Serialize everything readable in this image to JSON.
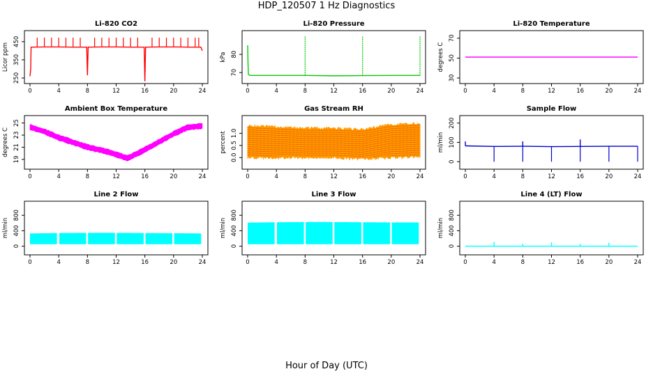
{
  "figure": {
    "title": "HDP_120507  1 Hz Diagnostics",
    "x_common_label": "Hour of Day (UTC)"
  },
  "chart_data": [
    {
      "id": "li820-co2",
      "type": "line",
      "title": "Li-820 CO2",
      "ylabel": "Licor ppm",
      "xlim": [
        0,
        24
      ],
      "ylim": [
        250,
        480
      ],
      "xticks": [
        0,
        4,
        8,
        12,
        16,
        20,
        24
      ],
      "yticks": [
        250,
        350,
        450
      ],
      "xtick_labels": [
        "0",
        "4",
        "8",
        "12",
        "16",
        "20",
        "24"
      ],
      "ytick_labels": [
        "250",
        "350",
        "450"
      ],
      "color": "#ff0000",
      "series": [
        {
          "x": [
            0,
            0.1,
            0.15,
            0.3,
            2,
            4,
            6,
            7.9,
            8,
            8.1,
            10,
            12,
            14,
            15.9,
            16,
            16.1,
            18,
            20,
            22,
            23.8,
            24
          ],
          "y": [
            260,
            300,
            420,
            420,
            421,
            421,
            420,
            420,
            265,
            420,
            421,
            421,
            420,
            420,
            232,
            420,
            421,
            421,
            420,
            420,
            400
          ]
        }
      ],
      "spikes_x": [
        1,
        2,
        3,
        4,
        5,
        6,
        7,
        9,
        10,
        11,
        12,
        13,
        14,
        15,
        17,
        18,
        19,
        20,
        21,
        22,
        23,
        23.5
      ],
      "spike_y": 472
    },
    {
      "id": "li820-pressure",
      "type": "line",
      "title": "Li-820 Pressure",
      "ylabel": "kPa",
      "xlim": [
        0,
        24
      ],
      "ylim": [
        67,
        90
      ],
      "xticks": [
        0,
        4,
        8,
        12,
        16,
        20,
        24
      ],
      "yticks": [
        70,
        80
      ],
      "xtick_labels": [
        "0",
        "4",
        "8",
        "12",
        "16",
        "20",
        "24"
      ],
      "ytick_labels": [
        "70",
        "80"
      ],
      "color": "#00cc00",
      "series": [
        {
          "x": [
            0,
            0.05,
            0.1,
            0.3,
            4,
            8,
            12,
            16,
            20,
            23.9,
            24
          ],
          "y": [
            85,
            75,
            69,
            68.4,
            68.4,
            68.4,
            68.2,
            68.3,
            68.4,
            68.4,
            68.4
          ]
        }
      ],
      "spikes_x": [
        8,
        16,
        24
      ],
      "spike_y": 90
    },
    {
      "id": "li820-temperature",
      "type": "line",
      "title": "Li-820 Temperature",
      "ylabel": "degrees C",
      "xlim": [
        0,
        24
      ],
      "ylim": [
        30,
        72
      ],
      "xticks": [
        0,
        4,
        8,
        12,
        16,
        20,
        24
      ],
      "yticks": [
        30,
        50,
        70
      ],
      "xtick_labels": [
        "0",
        "4",
        "8",
        "12",
        "16",
        "20",
        "24"
      ],
      "ytick_labels": [
        "30",
        "50",
        "70"
      ],
      "color": "#ff00ff",
      "series": [
        {
          "x": [
            0,
            24
          ],
          "y": [
            51,
            51
          ]
        }
      ]
    },
    {
      "id": "ambient-box-temperature",
      "type": "line",
      "title": "Ambient Box Temperature",
      "ylabel": "degrees C",
      "xlim": [
        0,
        24
      ],
      "ylim": [
        18.3,
        25.3
      ],
      "xticks": [
        0,
        4,
        8,
        12,
        16,
        20,
        24
      ],
      "yticks": [
        19,
        21,
        23,
        25
      ],
      "xtick_labels": [
        "0",
        "4",
        "8",
        "12",
        "16",
        "20",
        "24"
      ],
      "ytick_labels": [
        "19",
        "21",
        "23",
        "25"
      ],
      "color": "#ff00ff",
      "band_width": 0.9,
      "series": [
        {
          "x": [
            0,
            2,
            4,
            6,
            8,
            10,
            12,
            13.5,
            14,
            16,
            18,
            20,
            22,
            24
          ],
          "y": [
            24.3,
            23.6,
            22.6,
            21.8,
            21.0,
            20.5,
            19.8,
            19.2,
            19.4,
            20.6,
            21.9,
            23.2,
            24.3,
            24.5
          ]
        }
      ]
    },
    {
      "id": "gas-stream-rh",
      "type": "area",
      "title": "Gas Stream RH",
      "ylabel": "percent",
      "xlim": [
        0,
        24
      ],
      "ylim": [
        -0.25,
        1.5
      ],
      "xticks": [
        0,
        4,
        8,
        12,
        16,
        20,
        24
      ],
      "yticks": [
        0.0,
        0.5,
        1.0
      ],
      "xtick_labels": [
        "0",
        "4",
        "8",
        "12",
        "16",
        "20",
        "24"
      ],
      "ytick_labels": [
        "0.0",
        "0.5",
        "1.0"
      ],
      "color": "#ff9900",
      "hatch_color": "#cc0000",
      "series": [
        {
          "x": [
            0,
            4,
            8,
            12,
            16,
            20,
            24
          ],
          "y_low": [
            0.0,
            0.0,
            0.0,
            0.0,
            -0.05,
            0.0,
            0.05
          ],
          "y_high": [
            1.3,
            1.25,
            1.2,
            1.2,
            1.15,
            1.35,
            1.4
          ]
        }
      ]
    },
    {
      "id": "sample-flow",
      "type": "line",
      "title": "Sample Flow",
      "ylabel": "ml/min",
      "xlim": [
        0,
        24
      ],
      "ylim": [
        -10,
        210
      ],
      "xticks": [
        0,
        4,
        8,
        12,
        16,
        20,
        24
      ],
      "yticks": [
        0,
        100,
        200
      ],
      "xtick_labels": [
        "0",
        "4",
        "8",
        "12",
        "16",
        "20",
        "24"
      ],
      "ytick_labels": [
        "0",
        "100",
        "200"
      ],
      "color": "#0000cc",
      "series": [
        {
          "x": [
            0,
            4,
            8,
            12,
            16,
            20,
            24
          ],
          "y": [
            82,
            79,
            80,
            78,
            79,
            80,
            80
          ]
        }
      ],
      "dips_x": [
        4,
        8,
        12,
        16,
        20,
        24
      ],
      "dip_y": 0,
      "peaks_x": [
        0,
        8,
        16
      ],
      "peak_y": [
        105,
        105,
        115
      ]
    },
    {
      "id": "line2-flow",
      "type": "area",
      "title": "Line 2 Flow",
      "ylabel": "ml/min",
      "xlim": [
        0,
        24
      ],
      "ylim": [
        -80,
        1020
      ],
      "xticks": [
        0,
        4,
        8,
        12,
        16,
        20,
        24
      ],
      "yticks": [
        0,
        400,
        800
      ],
      "xtick_labels": [
        "0",
        "4",
        "8",
        "12",
        "16",
        "20",
        "24"
      ],
      "ytick_labels": [
        "0",
        "400",
        "800"
      ],
      "color": "#00ffff",
      "gaps_x": [
        4,
        8,
        12,
        16,
        20
      ],
      "series": [
        {
          "x": [
            0,
            4,
            8,
            12,
            16,
            20,
            24
          ],
          "y_low": [
            50,
            50,
            50,
            50,
            50,
            50,
            50
          ],
          "y_high": [
            330,
            340,
            345,
            345,
            340,
            335,
            330
          ]
        }
      ]
    },
    {
      "id": "line3-flow",
      "type": "area",
      "title": "Line 3 Flow",
      "ylabel": "ml/min",
      "xlim": [
        0,
        24
      ],
      "ylim": [
        -80,
        1020
      ],
      "xticks": [
        0,
        4,
        8,
        12,
        16,
        20,
        24
      ],
      "yticks": [
        0,
        400,
        800
      ],
      "xtick_labels": [
        "0",
        "4",
        "8",
        "12",
        "16",
        "20",
        "24"
      ],
      "ytick_labels": [
        "0",
        "400",
        "800"
      ],
      "color": "#00ffff",
      "gaps_x": [
        4,
        8,
        12,
        16,
        20
      ],
      "series": [
        {
          "x": [
            0,
            4,
            8,
            12,
            16,
            20,
            24
          ],
          "y_low": [
            50,
            50,
            50,
            50,
            50,
            50,
            50
          ],
          "y_high": [
            610,
            620,
            625,
            625,
            620,
            615,
            615
          ]
        }
      ]
    },
    {
      "id": "line4-lt-flow",
      "type": "line",
      "title": "Line 4 (LT) Flow",
      "ylabel": "ml/min",
      "xlim": [
        0,
        24
      ],
      "ylim": [
        -80,
        1020
      ],
      "xticks": [
        0,
        4,
        8,
        12,
        16,
        20,
        24
      ],
      "yticks": [
        0,
        400,
        800
      ],
      "xtick_labels": [
        "0",
        "4",
        "8",
        "12",
        "16",
        "20",
        "24"
      ],
      "ytick_labels": [
        "0",
        "400",
        "800"
      ],
      "color": "#00ffff",
      "series": [
        {
          "x": [
            0,
            24
          ],
          "y": [
            0,
            0
          ]
        }
      ],
      "peaks_x": [
        4,
        8,
        12,
        16,
        20
      ],
      "peak_y": [
        110,
        60,
        100,
        60,
        90
      ]
    }
  ]
}
